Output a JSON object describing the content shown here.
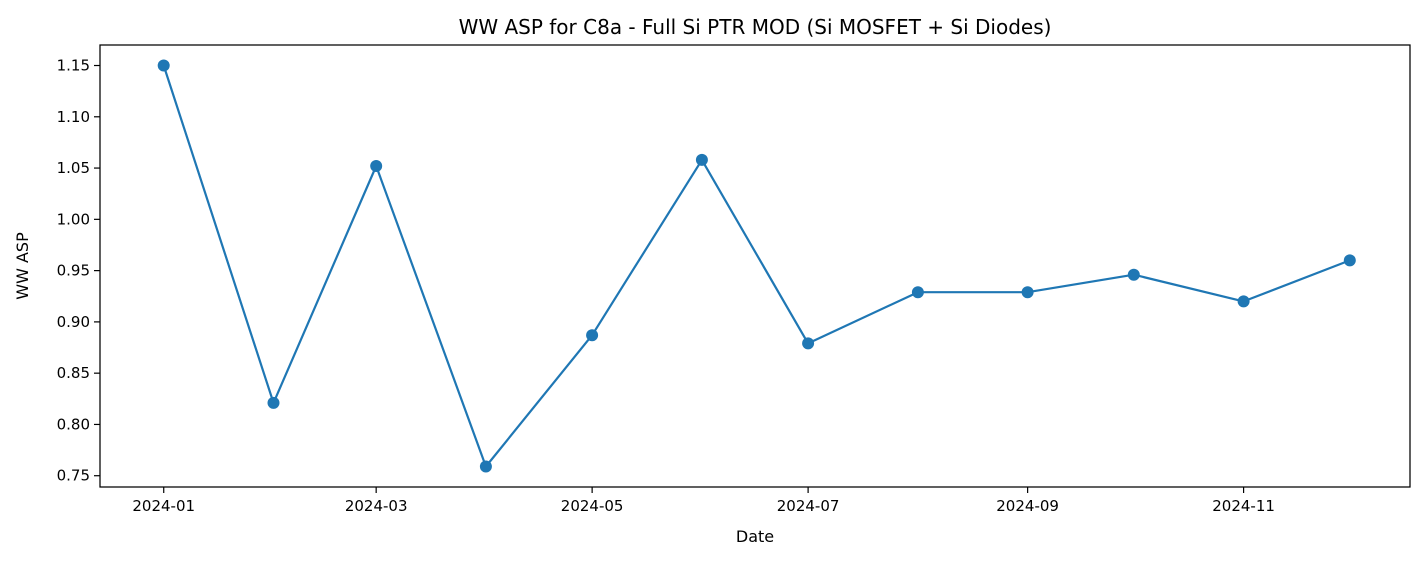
{
  "chart_data": {
    "type": "line",
    "title": "WW ASP for C8a - Full Si PTR MOD (Si MOSFET + Si Diodes)",
    "xlabel": "Date",
    "ylabel": "WW ASP",
    "x": [
      "2024-01-01",
      "2024-02-01",
      "2024-03-01",
      "2024-04-01",
      "2024-05-01",
      "2024-06-01",
      "2024-07-01",
      "2024-08-01",
      "2024-09-01",
      "2024-10-01",
      "2024-11-01",
      "2024-12-01"
    ],
    "series": [
      {
        "values": [
          1.15,
          0.821,
          1.052,
          0.759,
          0.887,
          1.058,
          0.879,
          0.929,
          0.929,
          0.946,
          0.92,
          0.96
        ],
        "color": "#1f77b4",
        "marker": "circle"
      }
    ],
    "x_ticks": [
      "2024-01",
      "2024-03",
      "2024-05",
      "2024-07",
      "2024-09",
      "2024-11"
    ],
    "y_ticks": [
      "0.75",
      "0.80",
      "0.85",
      "0.90",
      "0.95",
      "1.00",
      "1.05",
      "1.10",
      "1.15"
    ],
    "xlim": [
      "2023-12-14",
      "2024-12-18"
    ],
    "ylim": [
      0.739,
      1.17
    ],
    "grid": false,
    "legend": false
  }
}
